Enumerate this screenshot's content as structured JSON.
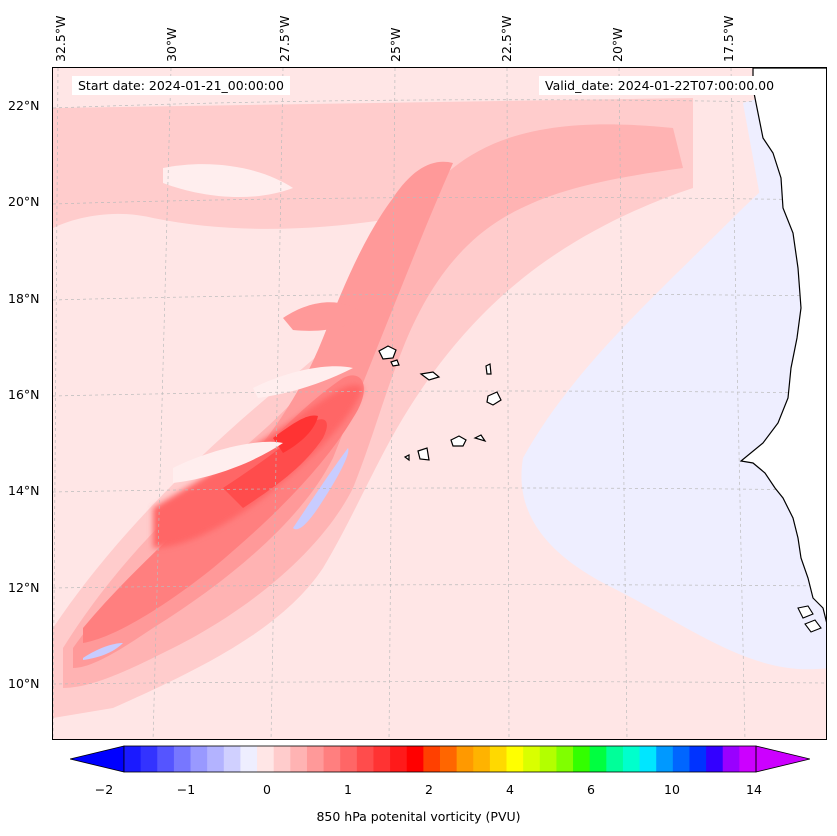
{
  "map": {
    "start_date": "Start date: 2024-01-21_00:00:00",
    "valid_date": "Valid_date: 2024-01-22T07:00:00.00",
    "lon_labels": [
      "32.5°W",
      "30°W",
      "27.5°W",
      "25°W",
      "22.5°W",
      "20°W",
      "17.5°W"
    ],
    "lat_labels": [
      "22°N",
      "20°N",
      "18°N",
      "16°N",
      "14°N",
      "12°N",
      "10°N"
    ],
    "colorbar": {
      "label": "850 hPa potenital vorticity (PVU)",
      "tick_labels": [
        "−2",
        "−1",
        "0",
        "1",
        "2",
        "4",
        "6",
        "10",
        "14"
      ],
      "extend": "both",
      "colors": [
        "#1a1aff",
        "#3333ff",
        "#5555ff",
        "#7777ff",
        "#9999ff",
        "#b3b3ff",
        "#d0d0ff",
        "#eeeeff",
        "#ffe6e6",
        "#ffcccc",
        "#ffb3b3",
        "#ff9999",
        "#ff7f7f",
        "#ff6666",
        "#ff4c4c",
        "#ff3333",
        "#ff1a1a",
        "#ff0000",
        "#ff4000",
        "#ff6600",
        "#ff9900",
        "#ffb300",
        "#ffd900",
        "#ffff00",
        "#d9ff00",
        "#b3ff00",
        "#80ff00",
        "#33ff00",
        "#00ff40",
        "#00ff99",
        "#00ffcc",
        "#00e6ff",
        "#0099ff",
        "#0066ff",
        "#0033ff",
        "#3300ff",
        "#9900ff",
        "#cc00ff"
      ],
      "under_color": "#0000ff",
      "over_color": "#cc00ff"
    }
  }
}
